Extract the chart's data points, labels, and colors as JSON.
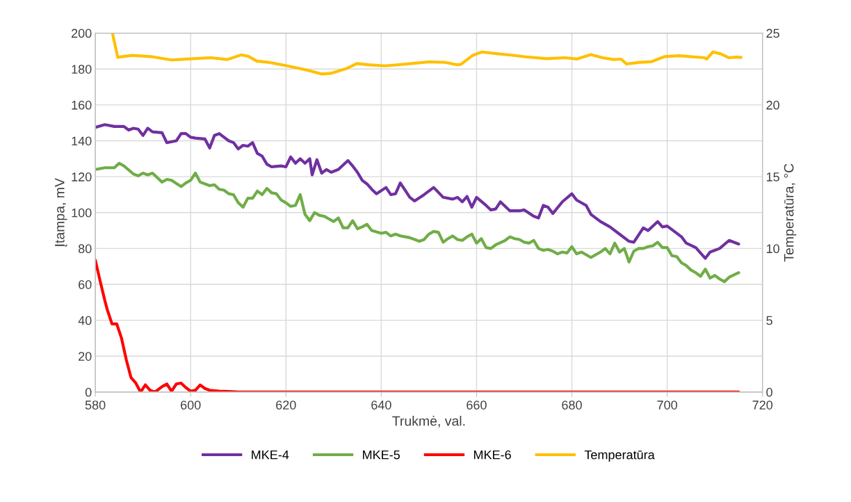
{
  "chart_data": {
    "type": "line",
    "xlabel": "Trukmė, val.",
    "ylabel": "Įtampa, mV",
    "y2label": "Temperatūra, °C",
    "xlim": [
      580,
      720
    ],
    "xticks": [
      580,
      600,
      620,
      640,
      660,
      680,
      700,
      720
    ],
    "ylim": [
      0,
      200
    ],
    "yticks": [
      0,
      20,
      40,
      60,
      80,
      100,
      120,
      140,
      160,
      180,
      200
    ],
    "y2lim": [
      0,
      25
    ],
    "y2ticks": [
      0,
      5,
      10,
      15,
      20,
      25
    ],
    "grid": true,
    "legend": "bottom",
    "marker": "none",
    "line_style": "solid",
    "series": [
      {
        "name": "MKE-4",
        "color": "#7030a0",
        "x": [
          580,
          582,
          584,
          586,
          587,
          588,
          589,
          590,
          591,
          592,
          594,
          595,
          597,
          598,
          599,
          600,
          601,
          603,
          604,
          605,
          606,
          608,
          609,
          610,
          611,
          612,
          613,
          614,
          615,
          616,
          617,
          619,
          620,
          621,
          622,
          623,
          624,
          625,
          625.5,
          626.5,
          627.5,
          628.5,
          629.5,
          631,
          633,
          634,
          635,
          636,
          637,
          638,
          639,
          641,
          642,
          643,
          644,
          646,
          647,
          649,
          651,
          653,
          655,
          656,
          657,
          658,
          659,
          660,
          662,
          663,
          664,
          665,
          667,
          669,
          670,
          672,
          673,
          674,
          675,
          676,
          678,
          680,
          681,
          683,
          684,
          686,
          688,
          690,
          692,
          693,
          695,
          696,
          698,
          699,
          700,
          702,
          703,
          704,
          706,
          707,
          708,
          709,
          711,
          713,
          715
        ],
        "values": [
          147.5,
          149,
          148,
          148,
          146,
          147,
          146.5,
          143,
          147,
          145,
          144.5,
          139,
          140,
          144,
          144,
          142,
          141.5,
          141,
          136,
          143,
          144,
          140,
          139,
          135.5,
          137.5,
          137,
          139,
          133,
          131.5,
          127,
          125.5,
          126,
          125.5,
          131,
          127.5,
          130,
          127.5,
          130,
          121,
          129.5,
          122,
          124,
          122.5,
          124,
          129,
          126,
          122.5,
          118,
          116,
          113,
          110.5,
          114,
          110,
          110.5,
          116.5,
          108.5,
          106.5,
          110,
          114,
          108.5,
          107.5,
          108.5,
          106,
          109,
          103,
          108.5,
          104,
          101.5,
          102,
          106,
          101,
          101,
          101.5,
          98,
          97,
          104,
          103,
          99.5,
          106,
          110.5,
          107,
          104,
          99,
          95,
          92,
          88,
          84,
          83.5,
          91.5,
          90,
          95,
          92,
          92.5,
          88.5,
          86.5,
          83,
          80.5,
          77.5,
          74.5,
          78,
          80,
          84.5,
          82.5
        ]
      },
      {
        "name": "MKE-5",
        "color": "#70ad47",
        "x": [
          580,
          582,
          584,
          585,
          586,
          588,
          589,
          590,
          591,
          592,
          594,
          595,
          596,
          598,
          599,
          600,
          601,
          602,
          604,
          605,
          606,
          607,
          608,
          609,
          610,
          611,
          612,
          613,
          614,
          615,
          616,
          617,
          618,
          619,
          620,
          621,
          622,
          623,
          624,
          625,
          626,
          627,
          628,
          629,
          630,
          631,
          632,
          633,
          634,
          635,
          636,
          637,
          638,
          640,
          641,
          642,
          643,
          644,
          646,
          648,
          649,
          650,
          651,
          652,
          653,
          654,
          655,
          656,
          657,
          658,
          659,
          660,
          661,
          662,
          663,
          664,
          666,
          667,
          668,
          669,
          670,
          671,
          672,
          673,
          674,
          675,
          676,
          677,
          678,
          679,
          680,
          681,
          682,
          684,
          686,
          687,
          688,
          689,
          690,
          691,
          692,
          693,
          694,
          695,
          696,
          697,
          698,
          699,
          700,
          701,
          702,
          703,
          704,
          705,
          706,
          707,
          708,
          709,
          710,
          711,
          712,
          713,
          715
        ],
        "values": [
          124,
          125,
          125,
          127.5,
          126,
          121.5,
          120.5,
          122,
          121,
          122,
          117,
          118.5,
          118,
          114.5,
          116.5,
          118,
          122,
          117,
          115,
          115.5,
          113,
          112.5,
          110.5,
          110,
          105.5,
          103,
          108,
          108,
          112,
          110,
          113.5,
          111,
          110.5,
          107,
          105.5,
          103.5,
          104,
          110,
          99,
          95.5,
          100,
          98.5,
          98,
          96.5,
          95,
          97,
          91.5,
          91.5,
          95.5,
          91,
          92,
          93.5,
          90,
          88.5,
          89,
          87,
          88,
          87,
          86,
          84,
          85,
          88,
          89.5,
          89,
          83.5,
          85.5,
          87,
          85,
          84.5,
          86.5,
          88,
          83,
          85.5,
          80.5,
          80,
          82,
          84.5,
          86.5,
          85.5,
          85,
          83.5,
          83,
          84.5,
          80,
          79,
          79.5,
          78.5,
          77,
          78,
          77.5,
          81,
          77,
          78,
          75,
          78,
          80,
          77,
          83,
          78,
          80,
          72.5,
          78.5,
          80,
          80,
          81,
          81.5,
          83.5,
          80.5,
          80.5,
          76,
          75.5,
          72,
          70.5,
          68,
          66.5,
          64.5,
          68.5,
          63.5,
          65,
          63,
          61.5,
          64,
          66.5
        ]
      },
      {
        "name": "MKE-6",
        "color": "#ff0000",
        "x": [
          580,
          581,
          582,
          582.5,
          583.5,
          584.5,
          585.5,
          586.5,
          587.5,
          588.5,
          589.5,
          590.5,
          591.5,
          592.5,
          594,
          595,
          596,
          597,
          598,
          599,
          600,
          601,
          602,
          603,
          604,
          606,
          608,
          610,
          650,
          715
        ],
        "values": [
          73.5,
          62,
          51,
          46,
          38,
          38,
          30,
          18,
          8,
          5,
          0,
          4,
          1,
          0,
          3,
          4.5,
          0.5,
          4.5,
          5,
          2.5,
          0.5,
          1,
          4,
          2,
          1,
          0.5,
          0.3,
          0,
          0,
          0
        ]
      },
      {
        "name": "Temperatūra",
        "color": "#ffc000",
        "axis": "y2",
        "x": [
          583.6,
          584.7,
          587.7,
          591.6,
          596,
          599.4,
          604.2,
          607.7,
          610.6,
          612,
          613.9,
          616.3,
          620.3,
          624.7,
          627.4,
          629.3,
          632.5,
          634.9,
          637.3,
          640.7,
          644.6,
          647.5,
          650,
          653.4,
          655.8,
          656.7,
          659.2,
          661.1,
          664.5,
          666.9,
          670.3,
          674.7,
          678.6,
          681.1,
          684,
          686.4,
          688.8,
          690.3,
          691.5,
          694.2,
          696.6,
          699.5,
          702.4,
          707.8,
          708.3,
          709.6,
          711.2,
          712.9,
          714.6,
          715.5
        ],
        "values": [
          25,
          23.32,
          23.45,
          23.37,
          23.13,
          23.2,
          23.29,
          23.16,
          23.48,
          23.4,
          23.05,
          22.97,
          22.72,
          22.4,
          22.16,
          22.19,
          22.51,
          22.88,
          22.8,
          22.72,
          22.83,
          22.92,
          23.0,
          22.96,
          22.8,
          22.82,
          23.45,
          23.69,
          23.56,
          23.48,
          23.35,
          23.22,
          23.29,
          23.2,
          23.51,
          23.29,
          23.16,
          23.19,
          22.85,
          22.97,
          23.0,
          23.37,
          23.43,
          23.29,
          23.2,
          23.69,
          23.56,
          23.29,
          23.33,
          23.31
        ]
      }
    ]
  }
}
